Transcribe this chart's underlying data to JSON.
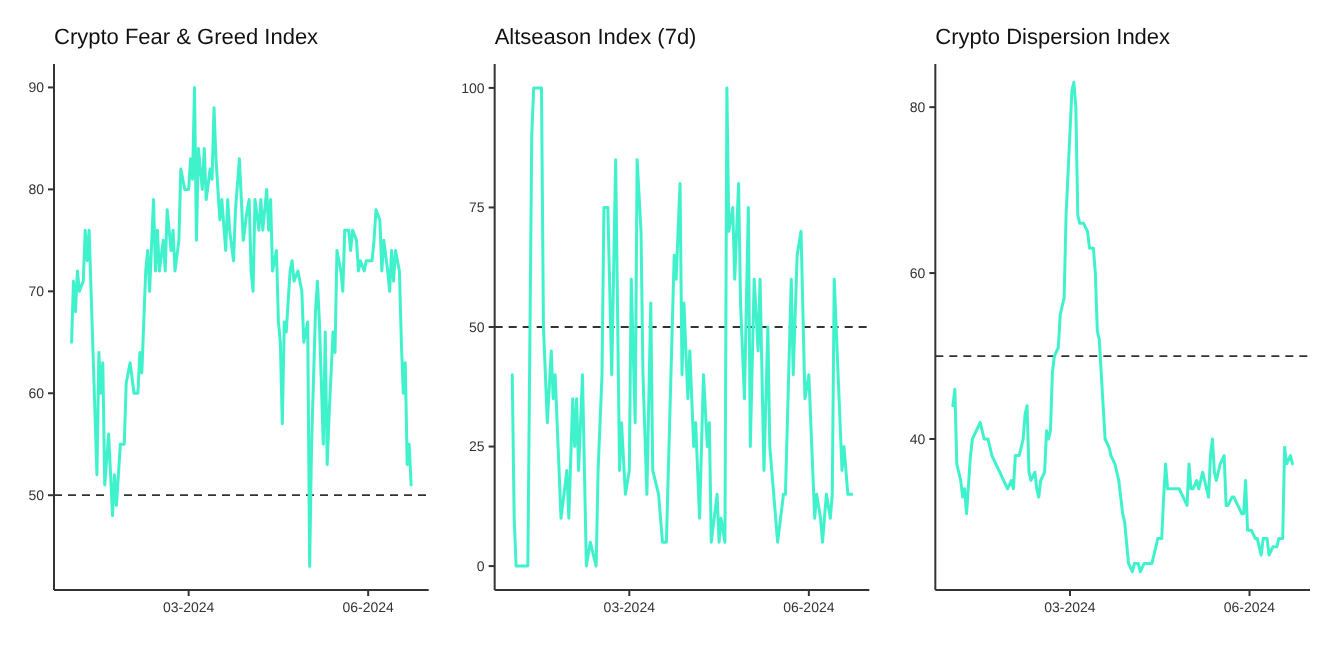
{
  "chart_data": [
    {
      "type": "line",
      "title": "Crypto Fear & Greed Index",
      "xlim": [
        "2023-12-23",
        "2024-07-02"
      ],
      "xticks": [
        {
          "value": "2024-03-01",
          "label": "03-2024"
        },
        {
          "value": "2024-06-01",
          "label": "06-2024"
        }
      ],
      "ylim": [
        40.7,
        92.3
      ],
      "yticks": [
        50,
        60,
        70,
        80,
        90
      ],
      "line_style": "solid",
      "ref_lines": [
        {
          "axis": "y",
          "value": 50,
          "line_style": "dashed",
          "color": "#333333"
        }
      ],
      "series": [
        {
          "color": "#40f2cc",
          "x": [
            "2024-01-01",
            "2024-01-02",
            "2024-01-03",
            "2024-01-04",
            "2024-01-05",
            "2024-01-07",
            "2024-01-08",
            "2024-01-09",
            "2024-01-10",
            "2024-01-11",
            "2024-01-13",
            "2024-01-14",
            "2024-01-15",
            "2024-01-16",
            "2024-01-17",
            "2024-01-18",
            "2024-01-20",
            "2024-01-21",
            "2024-01-22",
            "2024-01-23",
            "2024-01-24",
            "2024-01-26",
            "2024-01-28",
            "2024-01-29",
            "2024-01-31",
            "2024-02-02",
            "2024-02-04",
            "2024-02-05",
            "2024-02-06",
            "2024-02-08",
            "2024-02-09",
            "2024-02-10",
            "2024-02-12",
            "2024-02-13",
            "2024-02-14",
            "2024-02-15",
            "2024-02-17",
            "2024-02-18",
            "2024-02-19",
            "2024-02-21",
            "2024-02-22",
            "2024-02-23",
            "2024-02-25",
            "2024-02-26",
            "2024-02-28",
            "2024-03-01",
            "2024-03-02",
            "2024-03-03",
            "2024-03-04",
            "2024-03-05",
            "2024-03-06",
            "2024-03-08",
            "2024-03-09",
            "2024-03-10",
            "2024-03-12",
            "2024-03-13",
            "2024-03-14",
            "2024-03-15",
            "2024-03-17",
            "2024-03-18",
            "2024-03-20",
            "2024-03-21",
            "2024-03-22",
            "2024-03-24",
            "2024-03-25",
            "2024-03-27",
            "2024-03-28",
            "2024-03-29",
            "2024-03-31",
            "2024-04-01",
            "2024-04-02",
            "2024-04-03",
            "2024-04-04",
            "2024-04-06",
            "2024-04-07",
            "2024-04-08",
            "2024-04-10",
            "2024-04-11",
            "2024-04-12",
            "2024-04-13",
            "2024-04-15",
            "2024-04-16",
            "2024-04-17",
            "2024-04-18",
            "2024-04-19",
            "2024-04-20",
            "2024-04-22",
            "2024-04-23",
            "2024-04-24",
            "2024-04-26",
            "2024-04-28",
            "2024-04-29",
            "2024-05-01",
            "2024-05-02",
            "2024-05-03",
            "2024-05-05",
            "2024-05-06",
            "2024-05-07",
            "2024-05-09",
            "2024-05-10",
            "2024-05-11",
            "2024-05-12",
            "2024-05-14",
            "2024-05-15",
            "2024-05-16",
            "2024-05-18",
            "2024-05-19",
            "2024-05-20",
            "2024-05-22",
            "2024-05-23",
            "2024-05-24",
            "2024-05-26",
            "2024-05-27",
            "2024-05-28",
            "2024-05-30",
            "2024-05-31",
            "2024-06-01",
            "2024-06-03",
            "2024-06-04",
            "2024-06-05",
            "2024-06-07",
            "2024-06-08",
            "2024-06-09",
            "2024-06-11",
            "2024-06-12",
            "2024-06-13",
            "2024-06-14",
            "2024-06-15",
            "2024-06-17",
            "2024-06-18",
            "2024-06-19",
            "2024-06-20",
            "2024-06-21",
            "2024-06-22",
            "2024-06-23"
          ],
          "values": [
            65,
            71,
            68,
            72,
            70,
            71,
            76,
            73,
            76,
            70,
            58,
            52,
            64,
            60,
            63,
            51,
            56,
            52,
            48,
            52,
            49,
            55,
            55,
            61,
            63,
            60,
            60,
            64,
            62,
            72,
            74,
            70,
            79,
            72,
            76,
            72,
            75,
            72,
            78,
            74,
            76,
            72,
            75,
            82,
            80,
            80,
            83,
            81,
            90,
            75,
            84,
            80,
            84,
            79,
            82,
            81,
            88,
            83,
            77,
            79,
            74,
            79,
            76,
            73,
            78,
            83,
            79,
            75,
            78,
            79,
            72,
            70,
            79,
            76,
            79,
            76,
            80,
            76,
            79,
            72,
            74,
            67,
            65,
            57,
            67,
            66,
            72,
            73,
            71,
            72,
            70,
            65,
            67,
            43,
            55,
            68,
            71,
            67,
            55,
            66,
            53,
            58,
            66,
            64,
            74,
            72,
            70,
            76,
            76,
            74,
            76,
            75,
            72,
            73,
            72,
            73,
            73,
            73,
            75,
            78,
            77,
            72,
            75,
            72,
            70,
            74,
            71,
            74,
            72,
            65,
            60,
            63,
            53,
            55,
            51
          ]
        }
      ]
    },
    {
      "type": "line",
      "title": "Altseason Index (7d)",
      "xlim": [
        "2023-12-23",
        "2024-07-02"
      ],
      "xticks": [
        {
          "value": "2024-03-01",
          "label": "03-2024"
        },
        {
          "value": "2024-06-01",
          "label": "06-2024"
        }
      ],
      "ylim": [
        -5,
        105
      ],
      "yticks": [
        0,
        25,
        50,
        75,
        100
      ],
      "line_style": "solid",
      "ref_lines": [
        {
          "axis": "y",
          "value": 50,
          "line_style": "dashed",
          "color": "#333333"
        }
      ],
      "series": [
        {
          "color": "#40f2cc",
          "x": [
            "2024-01-01",
            "2024-01-02",
            "2024-01-03",
            "2024-01-09",
            "2024-01-11",
            "2024-01-12",
            "2024-01-16",
            "2024-01-17",
            "2024-01-19",
            "2024-01-21",
            "2024-01-22",
            "2024-01-23",
            "2024-01-24",
            "2024-01-26",
            "2024-01-29",
            "2024-01-30",
            "2024-02-01",
            "2024-02-02",
            "2024-02-03",
            "2024-02-04",
            "2024-02-06",
            "2024-02-08",
            "2024-02-10",
            "2024-02-13",
            "2024-02-14",
            "2024-02-16",
            "2024-02-17",
            "2024-02-19",
            "2024-02-21",
            "2024-02-23",
            "2024-02-25",
            "2024-02-26",
            "2024-02-28",
            "2024-03-01",
            "2024-03-02",
            "2024-03-04",
            "2024-03-05",
            "2024-03-07",
            "2024-03-08",
            "2024-03-10",
            "2024-03-12",
            "2024-03-13",
            "2024-03-16",
            "2024-03-18",
            "2024-03-20",
            "2024-03-23",
            "2024-03-24",
            "2024-03-25",
            "2024-03-27",
            "2024-03-28",
            "2024-03-29",
            "2024-03-31",
            "2024-04-01",
            "2024-04-03",
            "2024-04-04",
            "2024-04-06",
            "2024-04-08",
            "2024-04-10",
            "2024-04-11",
            "2024-04-12",
            "2024-04-15",
            "2024-04-16",
            "2024-04-17",
            "2024-04-19",
            "2024-04-20",
            "2024-04-21",
            "2024-04-23",
            "2024-04-24",
            "2024-04-26",
            "2024-04-27",
            "2024-04-29",
            "2024-05-01",
            "2024-05-02",
            "2024-05-04",
            "2024-05-06",
            "2024-05-07",
            "2024-05-09",
            "2024-05-11",
            "2024-05-12",
            "2024-05-16",
            "2024-05-19",
            "2024-05-20",
            "2024-05-23",
            "2024-05-24",
            "2024-05-26",
            "2024-05-28",
            "2024-05-30",
            "2024-06-01",
            "2024-06-04",
            "2024-06-05",
            "2024-06-07",
            "2024-06-08",
            "2024-06-10",
            "2024-06-12",
            "2024-06-13",
            "2024-06-14",
            "2024-06-18",
            "2024-06-19",
            "2024-06-21",
            "2024-06-23"
          ],
          "values": [
            40,
            10,
            0,
            0,
            90,
            100,
            100,
            50,
            30,
            45,
            35,
            40,
            30,
            10,
            20,
            10,
            35,
            25,
            35,
            20,
            40,
            0,
            5,
            0,
            20,
            40,
            75,
            75,
            40,
            85,
            20,
            30,
            15,
            20,
            60,
            30,
            85,
            70,
            40,
            15,
            55,
            20,
            15,
            5,
            5,
            50,
            65,
            60,
            80,
            40,
            55,
            35,
            45,
            25,
            30,
            10,
            40,
            25,
            30,
            5,
            15,
            5,
            10,
            5,
            100,
            70,
            75,
            60,
            80,
            55,
            35,
            75,
            25,
            60,
            45,
            60,
            20,
            50,
            25,
            5,
            15,
            15,
            60,
            40,
            65,
            70,
            35,
            40,
            10,
            15,
            10,
            5,
            15,
            10,
            15,
            60,
            20,
            25,
            15,
            15
          ]
        }
      ]
    },
    {
      "type": "line",
      "title": "Crypto Dispersion Index",
      "xlim": [
        "2023-12-23",
        "2024-07-02"
      ],
      "xticks": [
        {
          "value": "2024-03-01",
          "label": "03-2024"
        },
        {
          "value": "2024-06-01",
          "label": "06-2024"
        }
      ],
      "ylim": [
        21.8,
        85.2
      ],
      "yticks": [
        40,
        60,
        80
      ],
      "line_style": "solid",
      "ref_lines": [
        {
          "axis": "y",
          "value": 50,
          "line_style": "dashed",
          "color": "#333333"
        }
      ],
      "series": [
        {
          "color": "#40f2cc",
          "x": [
            "2024-01-01",
            "2024-01-02",
            "2024-01-03",
            "2024-01-05",
            "2024-01-06",
            "2024-01-07",
            "2024-01-08",
            "2024-01-10",
            "2024-01-11",
            "2024-01-13",
            "2024-01-15",
            "2024-01-17",
            "2024-01-19",
            "2024-01-20",
            "2024-01-21",
            "2024-01-23",
            "2024-01-25",
            "2024-01-27",
            "2024-01-29",
            "2024-01-31",
            "2024-02-01",
            "2024-02-02",
            "2024-02-04",
            "2024-02-06",
            "2024-02-07",
            "2024-02-08",
            "2024-02-09",
            "2024-02-10",
            "2024-02-12",
            "2024-02-13",
            "2024-02-14",
            "2024-02-15",
            "2024-02-17",
            "2024-02-18",
            "2024-02-19",
            "2024-02-20",
            "2024-02-21",
            "2024-02-22",
            "2024-02-24",
            "2024-02-25",
            "2024-02-26",
            "2024-02-27",
            "2024-02-28",
            "2024-02-29",
            "2024-03-02",
            "2024-03-03",
            "2024-03-04",
            "2024-03-05",
            "2024-03-06",
            "2024-03-08",
            "2024-03-10",
            "2024-03-11",
            "2024-03-13",
            "2024-03-14",
            "2024-03-15",
            "2024-03-16",
            "2024-03-18",
            "2024-03-19",
            "2024-03-21",
            "2024-03-22",
            "2024-03-24",
            "2024-03-25",
            "2024-03-26",
            "2024-03-28",
            "2024-03-29",
            "2024-03-31",
            "2024-04-02",
            "2024-04-03",
            "2024-04-05",
            "2024-04-06",
            "2024-04-08",
            "2024-04-10",
            "2024-04-12",
            "2024-04-13",
            "2024-04-15",
            "2024-04-17",
            "2024-04-18",
            "2024-04-19",
            "2024-04-20",
            "2024-04-22",
            "2024-04-24",
            "2024-04-26",
            "2024-04-28",
            "2024-04-30",
            "2024-05-01",
            "2024-05-02",
            "2024-05-03",
            "2024-05-05",
            "2024-05-06",
            "2024-05-08",
            "2024-05-09",
            "2024-05-11",
            "2024-05-12",
            "2024-05-13",
            "2024-05-14",
            "2024-05-15",
            "2024-05-17",
            "2024-05-19",
            "2024-05-20",
            "2024-05-21",
            "2024-05-23",
            "2024-05-24",
            "2024-05-26",
            "2024-05-28",
            "2024-05-29",
            "2024-05-30",
            "2024-05-31",
            "2024-06-02",
            "2024-06-04",
            "2024-06-05",
            "2024-06-07",
            "2024-06-08",
            "2024-06-10",
            "2024-06-11",
            "2024-06-13",
            "2024-06-15",
            "2024-06-16",
            "2024-06-18",
            "2024-06-19",
            "2024-06-20",
            "2024-06-22",
            "2024-06-23"
          ],
          "values": [
            44,
            46,
            37,
            35,
            33,
            34,
            31,
            38,
            40,
            41,
            42,
            40,
            40,
            39,
            38,
            37,
            36,
            35,
            34,
            35,
            34,
            38,
            38,
            40,
            43,
            44,
            36,
            35,
            36,
            34,
            33,
            35,
            36,
            41,
            40,
            41,
            48,
            50,
            51,
            55,
            56,
            57,
            67,
            72,
            82,
            83,
            80,
            67,
            66,
            66,
            65,
            63,
            63,
            60,
            53,
            52,
            44,
            40,
            39,
            38,
            37,
            36,
            35,
            31,
            30,
            25,
            24,
            25,
            25,
            24,
            25,
            25,
            25,
            26,
            28,
            28,
            33,
            37,
            34,
            34,
            34,
            34,
            33,
            32,
            37,
            34,
            34,
            35,
            34,
            36,
            35,
            33,
            38,
            40,
            36,
            35,
            37,
            38,
            32,
            32,
            33,
            33,
            32,
            31,
            31,
            35,
            29,
            29,
            28,
            28,
            26,
            28,
            28,
            26,
            27,
            27,
            28,
            28,
            39,
            37,
            38,
            37
          ]
        }
      ]
    }
  ]
}
